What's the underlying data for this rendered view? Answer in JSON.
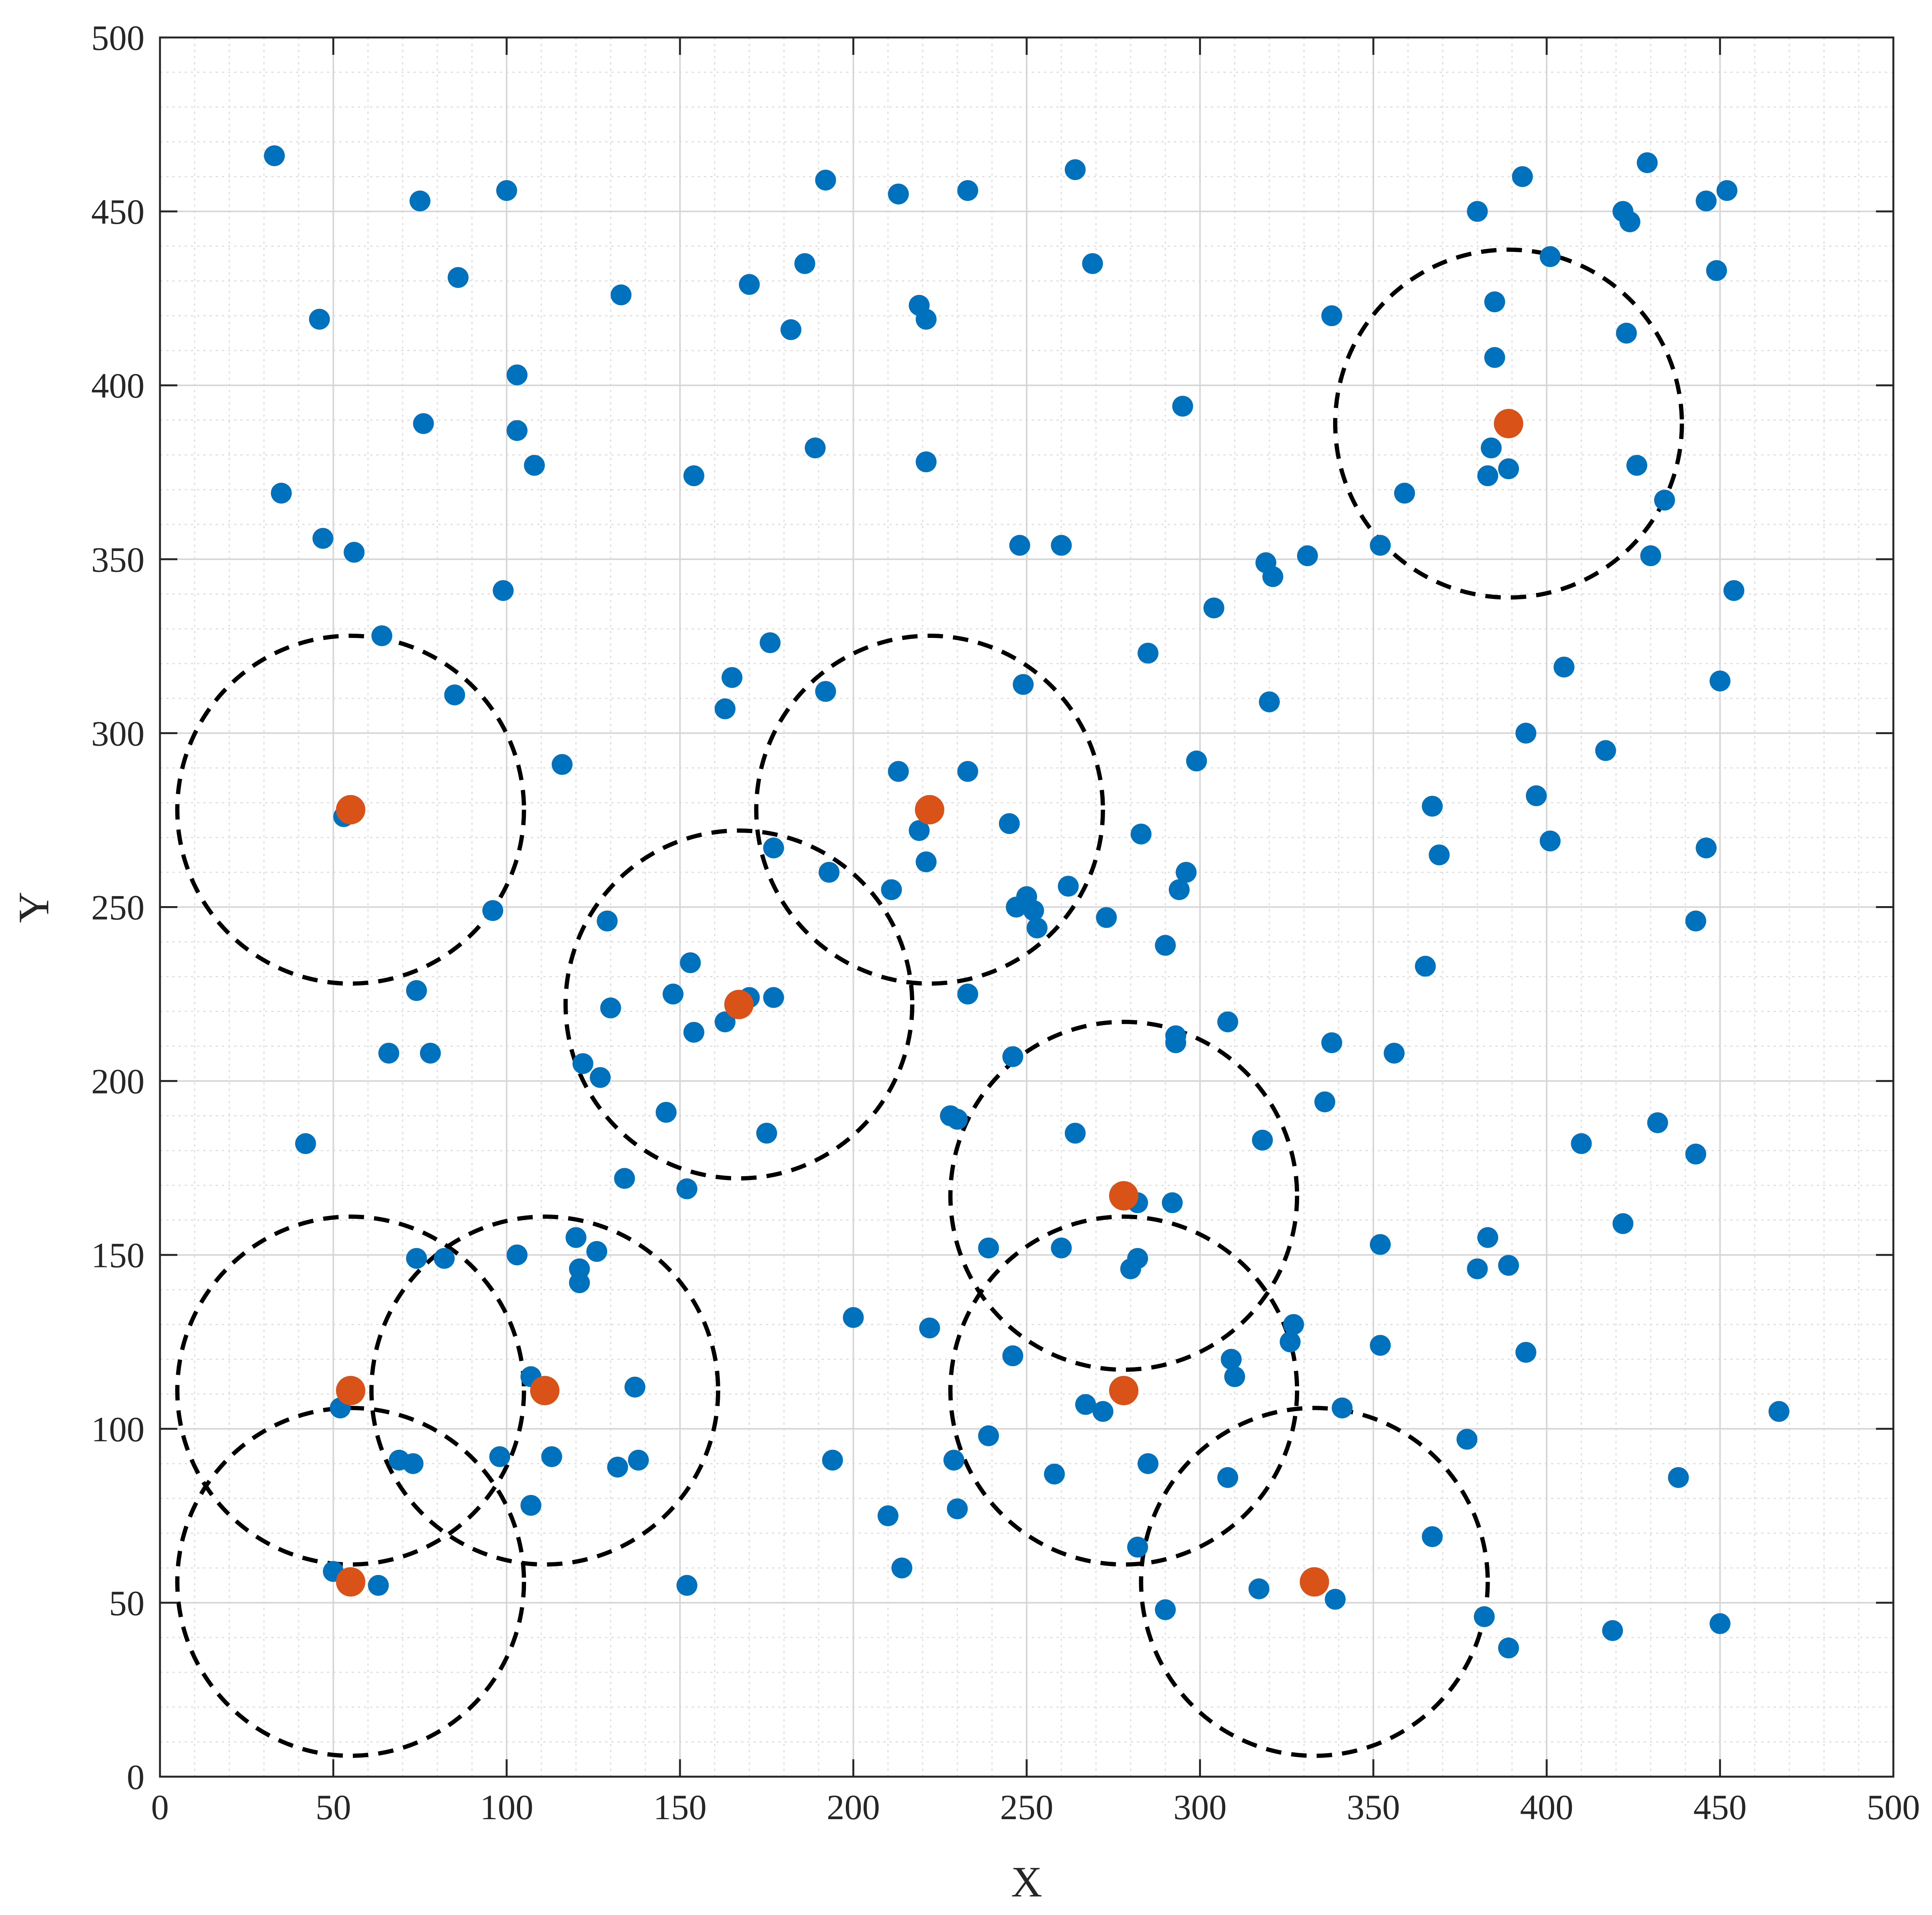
{
  "chart_data": {
    "type": "scatter",
    "xlabel": "X",
    "ylabel": "Y",
    "xlim": [
      0,
      500
    ],
    "ylim": [
      0,
      500
    ],
    "xticks": [
      0,
      50,
      100,
      150,
      200,
      250,
      300,
      350,
      400,
      450,
      500
    ],
    "yticks": [
      0,
      50,
      100,
      150,
      200,
      250,
      300,
      350,
      400,
      450,
      500
    ],
    "grid": true,
    "minor_grid": true,
    "colors": {
      "points": "#0072BD",
      "centers": "#D95319",
      "circles": "#000000"
    },
    "points": [
      [
        33,
        466
      ],
      [
        75,
        453
      ],
      [
        100,
        456
      ],
      [
        192,
        459
      ],
      [
        213,
        455
      ],
      [
        233,
        456
      ],
      [
        264,
        462
      ],
      [
        380,
        450
      ],
      [
        393,
        460
      ],
      [
        422,
        450
      ],
      [
        429,
        464
      ],
      [
        446,
        453
      ],
      [
        452,
        456
      ],
      [
        424,
        447
      ],
      [
        46,
        419
      ],
      [
        86,
        431
      ],
      [
        133,
        426
      ],
      [
        170,
        429
      ],
      [
        186,
        435
      ],
      [
        182,
        416
      ],
      [
        219,
        423
      ],
      [
        221,
        419
      ],
      [
        269,
        435
      ],
      [
        338,
        420
      ],
      [
        385,
        424
      ],
      [
        401,
        437
      ],
      [
        423,
        415
      ],
      [
        449,
        433
      ],
      [
        103,
        403
      ],
      [
        385,
        408
      ],
      [
        76,
        389
      ],
      [
        103,
        387
      ],
      [
        189,
        382
      ],
      [
        221,
        378
      ],
      [
        108,
        377
      ],
      [
        295,
        394
      ],
      [
        384,
        382
      ],
      [
        389,
        376
      ],
      [
        383,
        374
      ],
      [
        426,
        377
      ],
      [
        154,
        374
      ],
      [
        35,
        369
      ],
      [
        359,
        369
      ],
      [
        434,
        367
      ],
      [
        47,
        356
      ],
      [
        56,
        352
      ],
      [
        99,
        341
      ],
      [
        248,
        354
      ],
      [
        260,
        354
      ],
      [
        319,
        349
      ],
      [
        321,
        345
      ],
      [
        331,
        351
      ],
      [
        352,
        354
      ],
      [
        430,
        351
      ],
      [
        454,
        341
      ],
      [
        304,
        336
      ],
      [
        64,
        328
      ],
      [
        176,
        326
      ],
      [
        285,
        323
      ],
      [
        405,
        319
      ],
      [
        85,
        311
      ],
      [
        165,
        316
      ],
      [
        163,
        307
      ],
      [
        192,
        312
      ],
      [
        249,
        314
      ],
      [
        320,
        309
      ],
      [
        450,
        315
      ],
      [
        116,
        291
      ],
      [
        213,
        289
      ],
      [
        233,
        289
      ],
      [
        299,
        292
      ],
      [
        394,
        300
      ],
      [
        417,
        295
      ],
      [
        53,
        276
      ],
      [
        219,
        272
      ],
      [
        245,
        274
      ],
      [
        177,
        267
      ],
      [
        221,
        263
      ],
      [
        283,
        271
      ],
      [
        296,
        260
      ],
      [
        367,
        279
      ],
      [
        369,
        265
      ],
      [
        397,
        282
      ],
      [
        401,
        269
      ],
      [
        446,
        267
      ],
      [
        96,
        249
      ],
      [
        129,
        246
      ],
      [
        193,
        260
      ],
      [
        211,
        255
      ],
      [
        247,
        250
      ],
      [
        250,
        253
      ],
      [
        252,
        249
      ],
      [
        253,
        244
      ],
      [
        262,
        256
      ],
      [
        273,
        247
      ],
      [
        294,
        255
      ],
      [
        443,
        246
      ],
      [
        74,
        226
      ],
      [
        130,
        221
      ],
      [
        148,
        225
      ],
      [
        153,
        234
      ],
      [
        154,
        214
      ],
      [
        163,
        217
      ],
      [
        170,
        224
      ],
      [
        177,
        224
      ],
      [
        233,
        225
      ],
      [
        290,
        239
      ],
      [
        365,
        233
      ],
      [
        308,
        217
      ],
      [
        66,
        208
      ],
      [
        78,
        208
      ],
      [
        122,
        205
      ],
      [
        127,
        201
      ],
      [
        146,
        191
      ],
      [
        175,
        185
      ],
      [
        228,
        190
      ],
      [
        230,
        189
      ],
      [
        246,
        207
      ],
      [
        264,
        185
      ],
      [
        293,
        213
      ],
      [
        293,
        211
      ],
      [
        338,
        211
      ],
      [
        336,
        194
      ],
      [
        356,
        208
      ],
      [
        318,
        183
      ],
      [
        410,
        182
      ],
      [
        432,
        188
      ],
      [
        443,
        179
      ],
      [
        42,
        182
      ],
      [
        134,
        172
      ],
      [
        152,
        169
      ],
      [
        282,
        165
      ],
      [
        292,
        165
      ],
      [
        120,
        155
      ],
      [
        121,
        146
      ],
      [
        121,
        142
      ],
      [
        126,
        151
      ],
      [
        74,
        149
      ],
      [
        82,
        149
      ],
      [
        103,
        150
      ],
      [
        239,
        152
      ],
      [
        260,
        152
      ],
      [
        280,
        146
      ],
      [
        282,
        149
      ],
      [
        352,
        153
      ],
      [
        383,
        155
      ],
      [
        380,
        146
      ],
      [
        389,
        147
      ],
      [
        422,
        159
      ],
      [
        200,
        132
      ],
      [
        222,
        129
      ],
      [
        246,
        121
      ],
      [
        267,
        107
      ],
      [
        272,
        105
      ],
      [
        310,
        115
      ],
      [
        309,
        120
      ],
      [
        327,
        130
      ],
      [
        326,
        125
      ],
      [
        341,
        106
      ],
      [
        352,
        124
      ],
      [
        394,
        122
      ],
      [
        467,
        105
      ],
      [
        52,
        106
      ],
      [
        107,
        115
      ],
      [
        98,
        92
      ],
      [
        113,
        92
      ],
      [
        132,
        89
      ],
      [
        138,
        91
      ],
      [
        137,
        112
      ],
      [
        69,
        91
      ],
      [
        73,
        90
      ],
      [
        194,
        91
      ],
      [
        239,
        98
      ],
      [
        229,
        91
      ],
      [
        258,
        87
      ],
      [
        285,
        90
      ],
      [
        308,
        86
      ],
      [
        377,
        97
      ],
      [
        438,
        86
      ],
      [
        107,
        78
      ],
      [
        210,
        75
      ],
      [
        214,
        60
      ],
      [
        230,
        77
      ],
      [
        282,
        66
      ],
      [
        367,
        69
      ],
      [
        50,
        59
      ],
      [
        63,
        55
      ],
      [
        152,
        55
      ],
      [
        290,
        48
      ],
      [
        317,
        54
      ],
      [
        339,
        51
      ],
      [
        382,
        46
      ],
      [
        389,
        37
      ],
      [
        419,
        42
      ],
      [
        450,
        44
      ]
    ],
    "centers": [
      [
        55,
        111
      ],
      [
        111,
        111
      ],
      [
        55,
        56
      ],
      [
        55,
        278
      ],
      [
        167,
        222
      ],
      [
        222,
        278
      ],
      [
        278,
        167
      ],
      [
        278,
        111
      ],
      [
        333,
        56
      ],
      [
        389,
        389
      ]
    ],
    "radius": 50
  }
}
